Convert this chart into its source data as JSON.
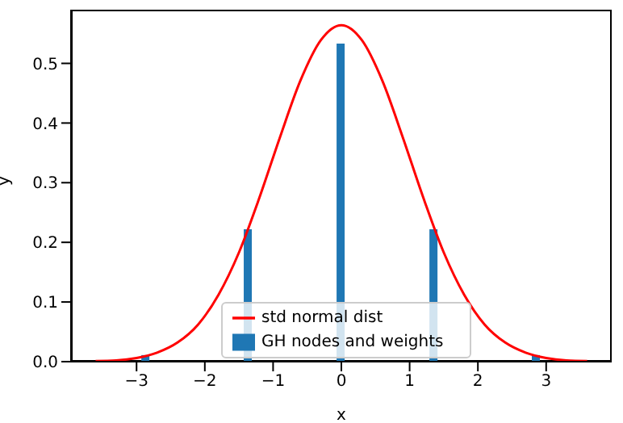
{
  "chart_data": {
    "type": "line",
    "xlabel": "x",
    "ylabel": "y",
    "xlim": [
      -3.96,
      3.96
    ],
    "xticks": [
      -3,
      -2,
      -1,
      0,
      1,
      2,
      3
    ],
    "ylim": [
      0,
      0.59
    ],
    "yticks": [
      {
        "value": 0,
        "label": "0.0"
      },
      0.1,
      0.2,
      0.3,
      0.4,
      0.5
    ],
    "grid": false,
    "legend": "bottom",
    "series": [
      {
        "name": "std normal dist",
        "color": "#ff0000",
        "x": [
          -3.6,
          -3.3,
          -3.0,
          -2.7,
          -2.4,
          -2.1,
          -1.8,
          -1.5,
          -1.2,
          -0.9,
          -0.6,
          -0.3,
          0,
          0.3,
          0.6,
          0.9,
          1.2,
          1.5,
          1.8,
          2.1,
          2.4,
          2.7,
          3.0,
          3.3,
          3.6
        ],
        "values": [
          0.001,
          0.002,
          0.006,
          0.015,
          0.032,
          0.062,
          0.112,
          0.183,
          0.275,
          0.376,
          0.471,
          0.539,
          0.564,
          0.539,
          0.471,
          0.376,
          0.275,
          0.183,
          0.112,
          0.062,
          0.032,
          0.015,
          0.006,
          0.002,
          0.001
        ]
      },
      {
        "name": "GH nodes and weights",
        "type": "bar",
        "color": "#1f77b4",
        "x": [
          -2.86,
          -1.36,
          0,
          1.36,
          2.86
        ],
        "values": [
          0.011,
          0.222,
          0.533,
          0.222,
          0.011
        ]
      }
    ]
  }
}
